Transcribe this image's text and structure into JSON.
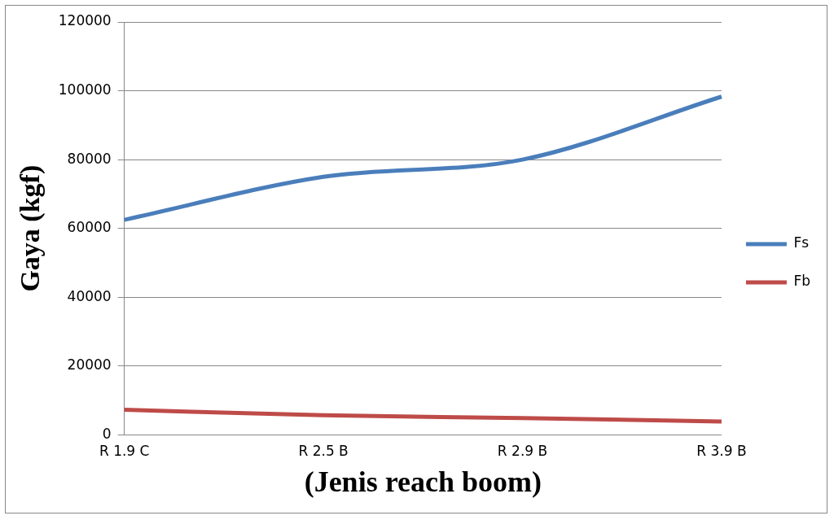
{
  "chart_data": {
    "type": "line",
    "xlabel": "(Jenis reach boom)",
    "ylabel": "Gaya (kgf)",
    "categories": [
      "R 1.9 C",
      "R 2.5 B",
      "R 2.9 B",
      "R 3.9 B"
    ],
    "series": [
      {
        "name": "Fs",
        "color": "#4a7ebb",
        "values": [
          62500,
          75000,
          80000,
          98300
        ]
      },
      {
        "name": "Fb",
        "color": "#be4b48",
        "values": [
          7300,
          5700,
          4900,
          3900
        ]
      }
    ],
    "ylim": [
      0,
      120000
    ],
    "yticks": [
      0,
      20000,
      40000,
      60000,
      80000,
      100000,
      120000
    ],
    "grid": "y",
    "legend": "right",
    "marker": "none",
    "line_style": "solid"
  }
}
